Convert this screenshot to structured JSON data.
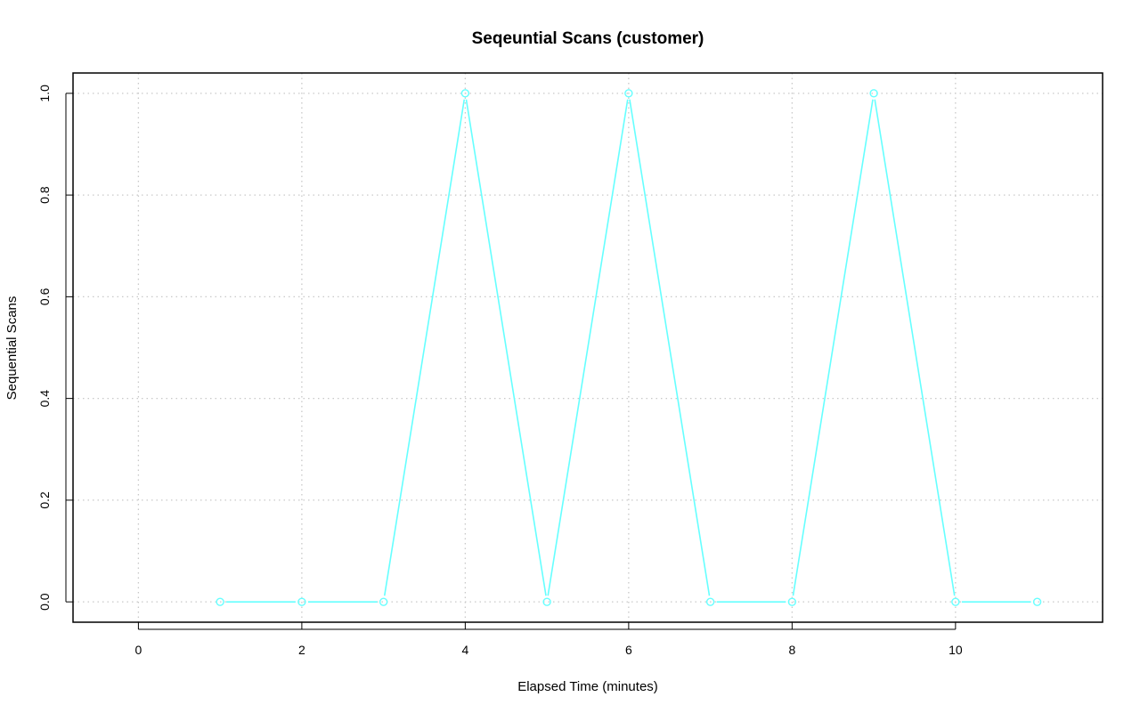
{
  "chart_data": {
    "type": "line",
    "title": "Seqeuntial Scans (customer)",
    "xlabel": "Elapsed Time (minutes)",
    "ylabel": "Sequential Scans",
    "xlim": [
      -0.8,
      11.8
    ],
    "ylim": [
      -0.04,
      1.04
    ],
    "x_ticks": [
      0,
      2,
      4,
      6,
      8,
      10
    ],
    "y_ticks": [
      0.0,
      0.2,
      0.4,
      0.6,
      0.8,
      1.0
    ],
    "x_tick_labels": [
      "0",
      "2",
      "4",
      "6",
      "8",
      "10"
    ],
    "y_tick_labels": [
      "0.0",
      "0.2",
      "0.4",
      "0.6",
      "0.8",
      "1.0"
    ],
    "grid": true,
    "series": [
      {
        "color": "#66ffff",
        "marker": "open-circle",
        "x": [
          1,
          2,
          3,
          4,
          5,
          6,
          7,
          8,
          9,
          10,
          11
        ],
        "values": [
          0,
          0,
          0,
          1,
          0,
          1,
          0,
          0,
          1,
          0,
          0
        ]
      }
    ]
  }
}
